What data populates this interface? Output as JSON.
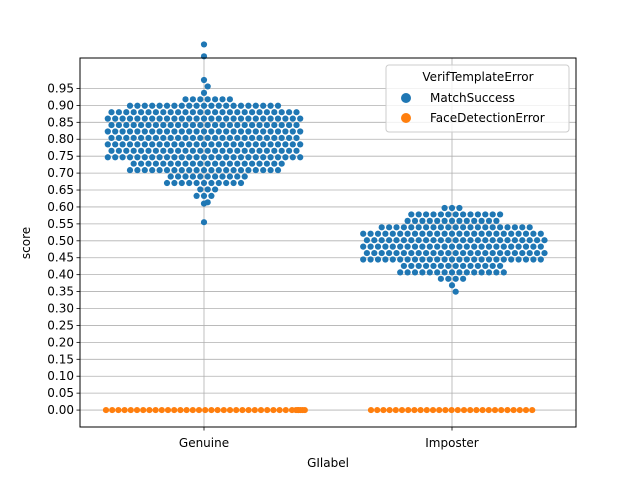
{
  "chart_data": {
    "type": "scatter",
    "subtype": "swarm",
    "xlabel": "GIlabel",
    "ylabel": "score",
    "categories": [
      "Genuine",
      "Imposter"
    ],
    "yticks": [
      "0.00",
      "0.05",
      "0.10",
      "0.15",
      "0.20",
      "0.25",
      "0.30",
      "0.35",
      "0.40",
      "0.45",
      "0.50",
      "0.55",
      "0.60",
      "0.65",
      "0.70",
      "0.75",
      "0.80",
      "0.85",
      "0.90",
      "0.95"
    ],
    "ylim": [
      -0.05,
      1.04
    ],
    "grid": true,
    "legend": {
      "title": "VerifTemplateError",
      "placement": "top-right",
      "entries": [
        "MatchSuccess",
        "FaceDetectionError"
      ]
    },
    "colors": {
      "MatchSuccess": "#1f77b4",
      "FaceDetectionError": "#ff7f0e"
    },
    "series": [
      {
        "name": "MatchSuccess",
        "category": "Genuine",
        "summary": {
          "count_approx": 330,
          "min": 0.555,
          "max": 1.08,
          "mode": 0.87
        },
        "outliers": [
          0.555,
          0.61,
          1.045,
          1.08
        ]
      },
      {
        "name": "FaceDetectionError",
        "category": "Genuine",
        "summary": {
          "count_approx": 36,
          "value": 0.0
        }
      },
      {
        "name": "MatchSuccess",
        "category": "Imposter",
        "summary": {
          "count_approx": 300,
          "min": 0.38,
          "max": 0.655,
          "mode": 0.52
        }
      },
      {
        "name": "FaceDetectionError",
        "category": "Imposter",
        "summary": {
          "count_approx": 28,
          "value": 0.0
        }
      }
    ]
  }
}
